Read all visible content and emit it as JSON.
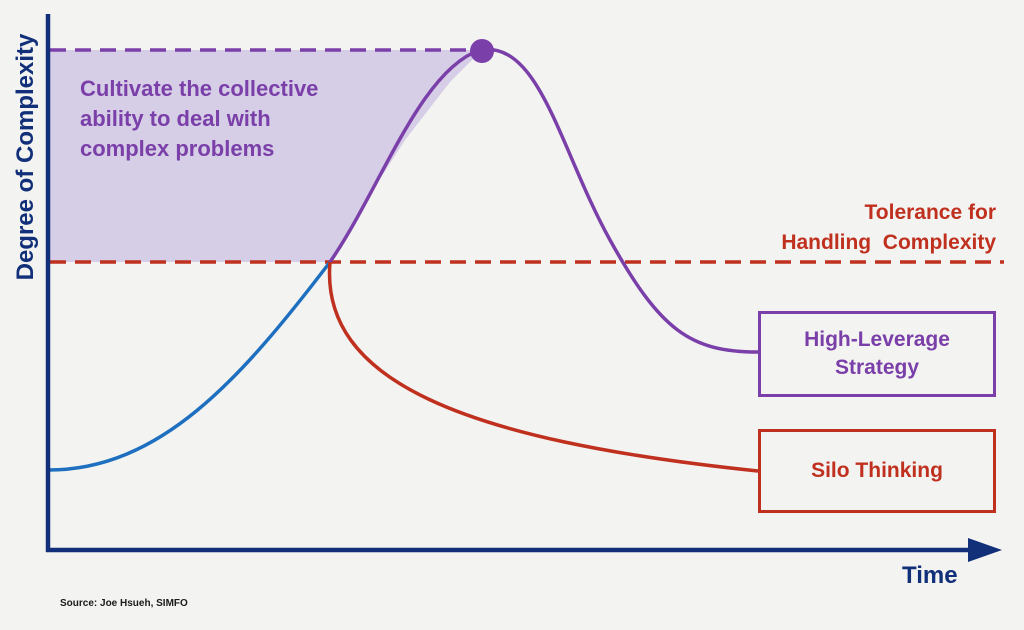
{
  "axes": {
    "y_label": "Degree of Complexity",
    "x_label": "Time"
  },
  "annotation": {
    "cultivate_text": "Cultivate the collective ability to deal with complex problems"
  },
  "threshold": {
    "label_line1": "Tolerance for",
    "label_line2": "Handling  Complexity"
  },
  "outcomes": {
    "high_leverage_line1": "High-Leverage",
    "high_leverage_line2": "Strategy",
    "silo": "Silo Thinking"
  },
  "source": "Source: Joe Hsueh, SIMFO",
  "colors": {
    "axis": "#12307a",
    "rise_curve": "#1e6fc0",
    "high_leverage": "#7a3fa8",
    "high_leverage_fill": "#d6cde6",
    "silo": "#c0301f"
  }
}
